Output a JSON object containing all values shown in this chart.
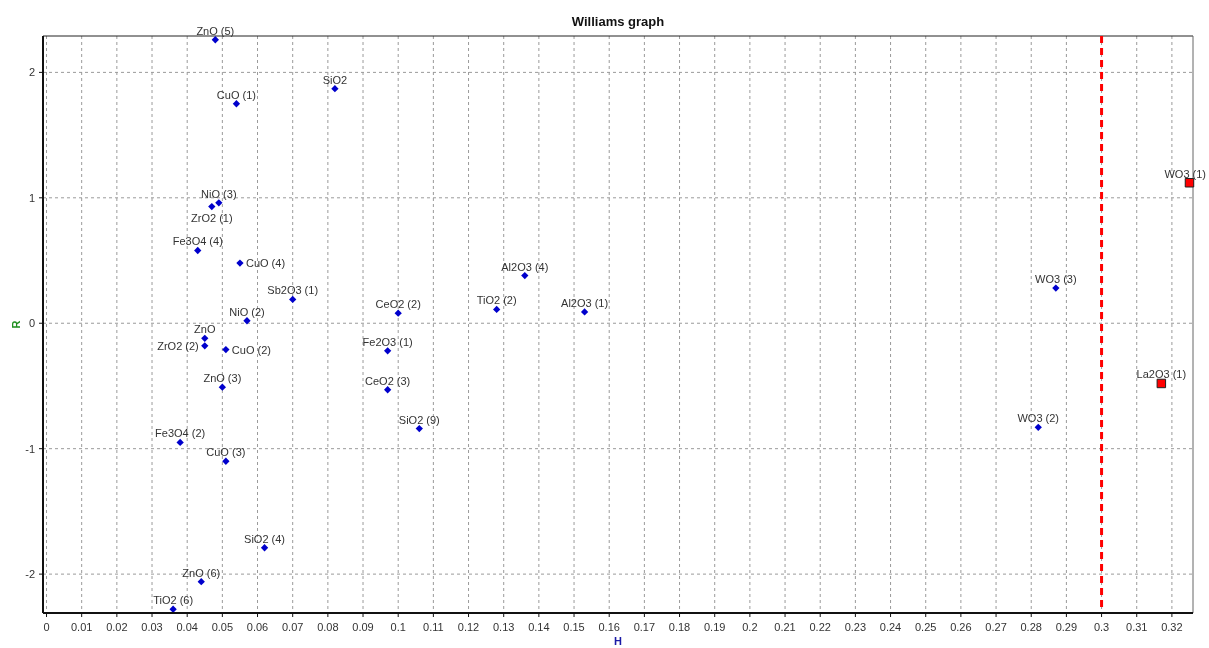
{
  "chart_data": {
    "type": "scatter",
    "title": "Williams graph",
    "xlabel": "H",
    "ylabel": "R",
    "xlim": [
      -0.001,
      0.326
    ],
    "ylim": [
      -2.31,
      2.29
    ],
    "xticks": [
      0,
      0.01,
      0.02,
      0.03,
      0.04,
      0.05,
      0.06,
      0.07,
      0.08,
      0.09,
      0.1,
      0.11,
      0.12,
      0.13,
      0.14,
      0.15,
      0.16,
      0.17,
      0.18,
      0.19,
      0.2,
      0.21,
      0.22,
      0.23,
      0.24,
      0.25,
      0.26,
      0.27,
      0.28,
      0.29,
      0.3,
      0.31,
      0.32
    ],
    "yticks": [
      -2,
      -1,
      0,
      1,
      2
    ],
    "grid": true,
    "series": [
      {
        "color": "#0000cc",
        "marker": "diamond",
        "x": [
          0.048,
          0.082,
          0.054,
          0.049,
          0.047,
          0.043,
          0.055,
          0.07,
          0.057,
          0.045,
          0.045,
          0.051,
          0.05,
          0.038,
          0.051,
          0.062,
          0.044,
          0.036,
          0.136,
          0.1,
          0.128,
          0.153,
          0.097,
          0.097,
          0.106,
          0.287,
          0.282
        ],
        "values": [
          2.26,
          1.87,
          1.75,
          0.96,
          0.93,
          0.58,
          0.48,
          0.19,
          0.02,
          -0.12,
          -0.18,
          -0.21,
          -0.51,
          -0.95,
          -1.1,
          -1.79,
          -2.06,
          -2.28,
          0.38,
          0.08,
          0.11,
          0.09,
          -0.22,
          -0.53,
          -0.84,
          0.28,
          -0.83
        ]
      },
      {
        "color": "#ff0000",
        "marker": "square",
        "x": [
          0.325,
          0.317
        ],
        "values": [
          1.12,
          -0.48
        ]
      }
    ],
    "ref_lines": [
      {
        "axis": "x",
        "value": 0.3,
        "color": "#ff0000",
        "line_style": "dashed"
      }
    ],
    "annotations": [
      {
        "text": "ZnO (5)",
        "x": 0.048,
        "y": 2.26
      },
      {
        "text": "SiO2",
        "x": 0.082,
        "y": 1.87
      },
      {
        "text": "CuO (1)",
        "x": 0.054,
        "y": 1.75
      },
      {
        "text": "NiO (3)",
        "x": 0.049,
        "y": 0.96
      },
      {
        "text": "ZrO2 (1)",
        "x": 0.047,
        "y": 0.93
      },
      {
        "text": "Fe3O4 (4)",
        "x": 0.043,
        "y": 0.58
      },
      {
        "text": "CuO (4)",
        "x": 0.055,
        "y": 0.48
      },
      {
        "text": "Sb2O3 (1)",
        "x": 0.07,
        "y": 0.19
      },
      {
        "text": "NiO (2)",
        "x": 0.057,
        "y": 0.02
      },
      {
        "text": "ZnO",
        "x": 0.045,
        "y": -0.12
      },
      {
        "text": "ZrO2 (2)",
        "x": 0.045,
        "y": -0.18
      },
      {
        "text": "CuO (2)",
        "x": 0.051,
        "y": -0.21
      },
      {
        "text": "ZnO (3)",
        "x": 0.05,
        "y": -0.51
      },
      {
        "text": "Fe3O4 (2)",
        "x": 0.038,
        "y": -0.95
      },
      {
        "text": "CuO (3)",
        "x": 0.051,
        "y": -1.1
      },
      {
        "text": "SiO2 (4)",
        "x": 0.062,
        "y": -1.79
      },
      {
        "text": "ZnO (6)",
        "x": 0.044,
        "y": -2.06
      },
      {
        "text": "TiO2 (6)",
        "x": 0.036,
        "y": -2.28
      },
      {
        "text": "Al2O3 (4)",
        "x": 0.136,
        "y": 0.38
      },
      {
        "text": "CeO2 (2)",
        "x": 0.1,
        "y": 0.08
      },
      {
        "text": "TiO2 (2)",
        "x": 0.128,
        "y": 0.11
      },
      {
        "text": "Al2O3 (1)",
        "x": 0.153,
        "y": 0.09
      },
      {
        "text": "Fe2O3 (1)",
        "x": 0.097,
        "y": -0.22
      },
      {
        "text": "CeO2 (3)",
        "x": 0.097,
        "y": -0.53
      },
      {
        "text": "SiO2 (9)",
        "x": 0.106,
        "y": -0.84
      },
      {
        "text": "WO3 (3)",
        "x": 0.287,
        "y": 0.28
      },
      {
        "text": "WO3 (2)",
        "x": 0.282,
        "y": -0.83
      },
      {
        "text": "WO3 (1)",
        "x": 0.325,
        "y": 1.12
      },
      {
        "text": "La2O3 (1)",
        "x": 0.317,
        "y": -0.48
      }
    ]
  }
}
